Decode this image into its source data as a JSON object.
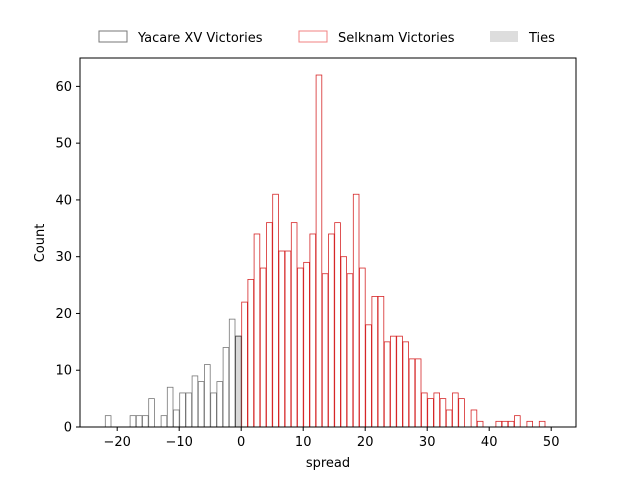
{
  "chart_data": {
    "type": "bar",
    "subtype": "histogram",
    "xlabel": "spread",
    "ylabel": "Count",
    "xlim": [
      -26,
      54
    ],
    "ylim": [
      0,
      65
    ],
    "bin_width": 1,
    "x_ticks": [
      -20,
      -10,
      0,
      10,
      20,
      30,
      40,
      50
    ],
    "y_ticks": [
      0,
      10,
      20,
      30,
      40,
      50,
      60
    ],
    "x_tick_labels": [
      "−20",
      "−10",
      "0",
      "10",
      "20",
      "30",
      "40",
      "50"
    ],
    "y_tick_labels": [
      "0",
      "10",
      "20",
      "30",
      "40",
      "50",
      "60"
    ],
    "grid": false,
    "legend_position": "top-center (outside, above axes)",
    "series": [
      {
        "name": "Yacare XV Victories",
        "edge_color": "#777777",
        "fill_color": "none",
        "bins": [
          [
            -22,
            2
          ],
          [
            -18,
            2
          ],
          [
            -17,
            2
          ],
          [
            -16,
            2
          ],
          [
            -15,
            5
          ],
          [
            -13,
            2
          ],
          [
            -12,
            7
          ],
          [
            -11,
            3
          ],
          [
            -10,
            6
          ],
          [
            -9,
            6
          ],
          [
            -8,
            9
          ],
          [
            -7,
            8
          ],
          [
            -6,
            11
          ],
          [
            -5,
            6
          ],
          [
            -4,
            8
          ],
          [
            -3,
            14
          ],
          [
            -2,
            19
          ],
          [
            -1,
            16
          ]
        ]
      },
      {
        "name": "Selknam Victories",
        "edge_color": "#d62728",
        "fill_color": "none",
        "bins": [
          [
            0,
            22
          ],
          [
            1,
            26
          ],
          [
            2,
            34
          ],
          [
            3,
            28
          ],
          [
            4,
            36
          ],
          [
            5,
            41
          ],
          [
            6,
            31
          ],
          [
            7,
            31
          ],
          [
            8,
            36
          ],
          [
            9,
            28
          ],
          [
            10,
            29
          ],
          [
            11,
            34
          ],
          [
            12,
            62
          ],
          [
            13,
            27
          ],
          [
            14,
            34
          ],
          [
            15,
            36
          ],
          [
            16,
            30
          ],
          [
            17,
            27
          ],
          [
            18,
            41
          ],
          [
            19,
            28
          ],
          [
            20,
            18
          ],
          [
            21,
            23
          ],
          [
            22,
            23
          ],
          [
            23,
            15
          ],
          [
            24,
            16
          ],
          [
            25,
            16
          ],
          [
            26,
            15
          ],
          [
            27,
            12
          ],
          [
            28,
            12
          ],
          [
            29,
            6
          ],
          [
            30,
            5
          ],
          [
            31,
            6
          ],
          [
            32,
            5
          ],
          [
            33,
            3
          ],
          [
            34,
            6
          ],
          [
            35,
            5
          ],
          [
            37,
            3
          ],
          [
            38,
            1
          ],
          [
            41,
            1
          ],
          [
            42,
            1
          ],
          [
            43,
            1
          ],
          [
            44,
            2
          ],
          [
            46,
            1
          ],
          [
            48,
            1
          ]
        ]
      },
      {
        "name": "Ties",
        "edge_color": "#444444",
        "fill_color": "#d9d9d9",
        "bins": [
          [
            -1,
            16
          ]
        ]
      }
    ]
  }
}
